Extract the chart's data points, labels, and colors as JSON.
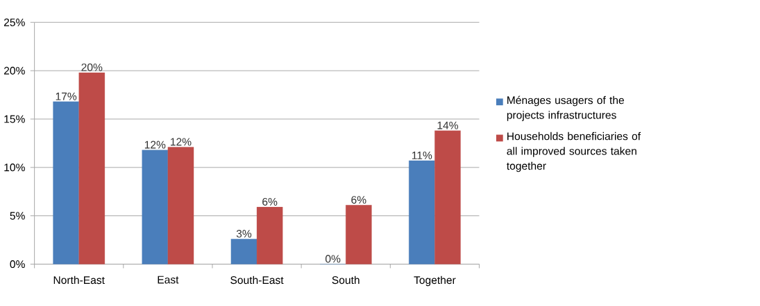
{
  "chart_data": {
    "type": "bar",
    "categories": [
      "North-East",
      "East",
      "South-East",
      "South",
      "Together"
    ],
    "series": [
      {
        "name": "Ménages usagers of the projects infrastructures",
        "color": "#4a7ebb",
        "values": [
          16.8,
          11.8,
          2.6,
          0,
          10.7
        ],
        "value_labels": [
          "17%",
          "12%",
          "3%",
          "0%",
          "11%"
        ]
      },
      {
        "name": "Households beneficiaries of all improved sources taken together",
        "color": "#be4b48",
        "values": [
          19.8,
          12.1,
          5.9,
          6.1,
          13.8
        ],
        "value_labels": [
          "20%",
          "12%",
          "6%",
          "6%",
          "14%"
        ]
      }
    ],
    "ylim": [
      0,
      25
    ],
    "yticks": [
      {
        "value": 0,
        "label": "0%"
      },
      {
        "value": 5,
        "label": "5%"
      },
      {
        "value": 10,
        "label": "10%"
      },
      {
        "value": 15,
        "label": "15%"
      },
      {
        "value": 20,
        "label": "20%"
      },
      {
        "value": 25,
        "label": "25%"
      }
    ],
    "grid": "y",
    "legend": "right"
  }
}
